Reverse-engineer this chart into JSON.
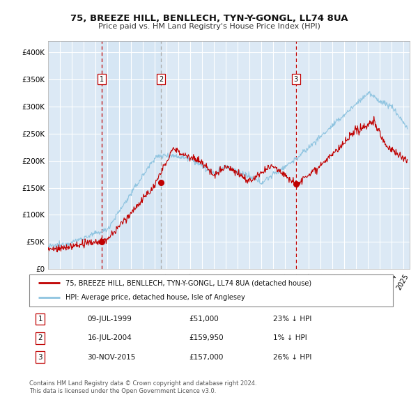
{
  "title_line1": "75, BREEZE HILL, BENLLECH, TYN-Y-GONGL, LL74 8UA",
  "title_line2": "Price paid vs. HM Land Registry's House Price Index (HPI)",
  "background_color": "#ffffff",
  "plot_bg_color": "#dce9f5",
  "grid_color": "#ffffff",
  "hpi_color": "#8fc4e0",
  "price_color": "#c00000",
  "ylim": [
    0,
    420000
  ],
  "yticks": [
    0,
    50000,
    100000,
    150000,
    200000,
    250000,
    300000,
    350000,
    400000
  ],
  "ytick_labels": [
    "£0",
    "£50K",
    "£100K",
    "£150K",
    "£200K",
    "£250K",
    "£300K",
    "£350K",
    "£400K"
  ],
  "sale1_date": 1999.52,
  "sale1_price": 51000,
  "sale2_date": 2004.54,
  "sale2_price": 159950,
  "sale3_date": 2015.91,
  "sale3_price": 157000,
  "sale1_date_str": "09-JUL-1999",
  "sale2_date_str": "16-JUL-2004",
  "sale3_date_str": "30-NOV-2015",
  "sale1_price_str": "£51,000",
  "sale2_price_str": "£159,950",
  "sale3_price_str": "£157,000",
  "sale1_pct": "23% ↓ HPI",
  "sale2_pct": "1% ↓ HPI",
  "sale3_pct": "26% ↓ HPI",
  "legend_label_price": "75, BREEZE HILL, BENLLECH, TYN-Y-GONGL, LL74 8UA (detached house)",
  "legend_label_hpi": "HPI: Average price, detached house, Isle of Anglesey",
  "footer1": "Contains HM Land Registry data © Crown copyright and database right 2024.",
  "footer2": "This data is licensed under the Open Government Licence v3.0.",
  "xmin": 1995.0,
  "xmax": 2025.5
}
